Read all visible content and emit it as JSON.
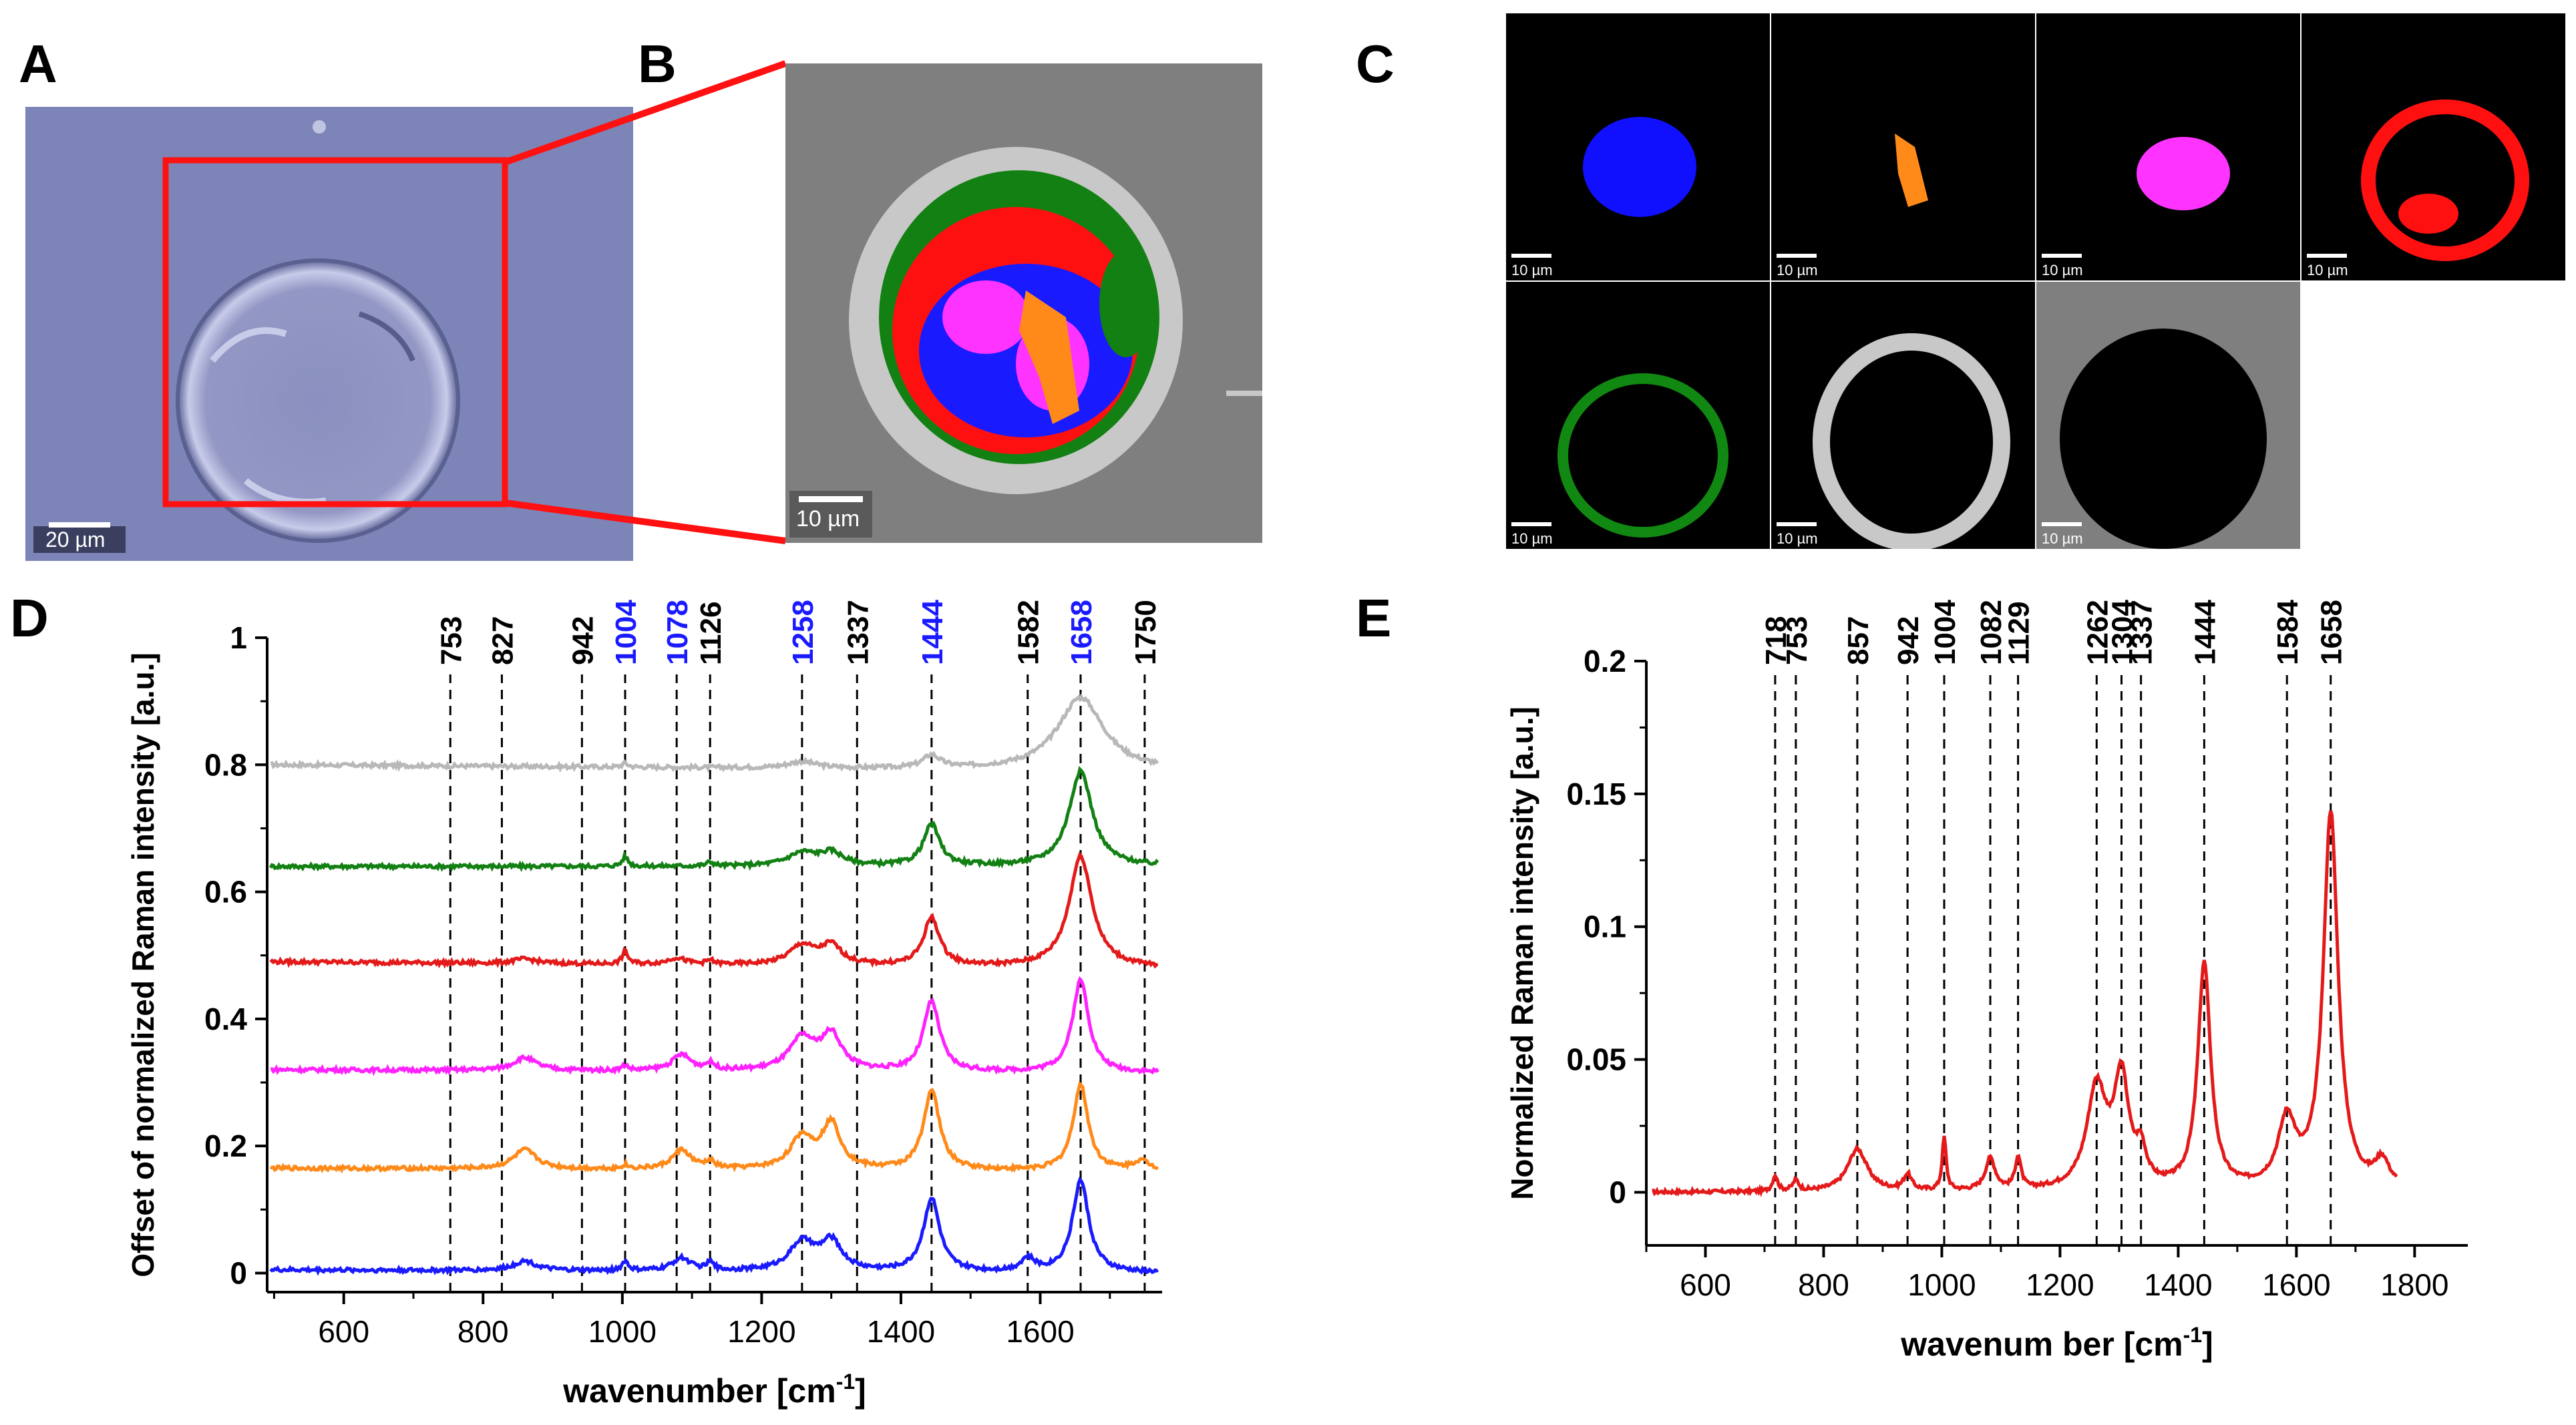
{
  "panels": {
    "a": {
      "letter": "A",
      "scale_label": "20 µm"
    },
    "b": {
      "letter": "B",
      "scale_label": "10 µm"
    },
    "c": {
      "letter": "C",
      "scale_label": "10 µm",
      "tiles": [
        {
          "name": "blue-cluster",
          "color": "#1010ff"
        },
        {
          "name": "orange-cluster",
          "color": "#ff8a1a"
        },
        {
          "name": "magenta-cluster",
          "color": "#ff33ff"
        },
        {
          "name": "red-cluster",
          "color": "#ff1010"
        },
        {
          "name": "green-cluster",
          "color": "#118811"
        },
        {
          "name": "light-gray-cluster",
          "color": "#c8c8c8"
        },
        {
          "name": "background-cluster",
          "color": "#7f7f7f"
        }
      ]
    },
    "d": {
      "letter": "D"
    },
    "e": {
      "letter": "E"
    }
  },
  "chart_data": [
    {
      "id": "D",
      "type": "line",
      "xlabel": "wavenumber [cm",
      "xlabel_sup": "-1",
      "xlabel_end": "]",
      "ylabel": "Offset of normalized Raman intensity [a.u.]",
      "xlim": [
        490,
        1775
      ],
      "ylim": [
        -0.03,
        1.0
      ],
      "xticks": [
        600,
        800,
        1000,
        1200,
        1400,
        1600
      ],
      "yticks": [
        0,
        0.2,
        0.4,
        0.6,
        0.8,
        1
      ],
      "ytick_labels": [
        "0",
        "0.2",
        "0.4",
        "0.6",
        "0.8",
        "1"
      ],
      "peak_markers": [
        {
          "x": 753,
          "label": "753",
          "color": "#000000"
        },
        {
          "x": 827,
          "label": "827",
          "color": "#000000"
        },
        {
          "x": 942,
          "label": "942",
          "color": "#000000"
        },
        {
          "x": 1004,
          "label": "1004",
          "color": "#1a1aff"
        },
        {
          "x": 1078,
          "label": "1078",
          "color": "#1a1aff"
        },
        {
          "x": 1126,
          "label": "1126",
          "color": "#000000"
        },
        {
          "x": 1258,
          "label": "1258",
          "color": "#1a1aff"
        },
        {
          "x": 1337,
          "label": "1337",
          "color": "#000000"
        },
        {
          "x": 1444,
          "label": "1444",
          "color": "#1a1aff"
        },
        {
          "x": 1582,
          "label": "1582",
          "color": "#000000"
        },
        {
          "x": 1658,
          "label": "1658",
          "color": "#1a1aff"
        },
        {
          "x": 1750,
          "label": "1750",
          "color": "#000000"
        }
      ],
      "series": [
        {
          "name": "gray",
          "color": "#b8b8b8",
          "offset": 0.8,
          "peaks": [
            [
              1004,
              0.006,
              5
            ],
            [
              1258,
              0.01,
              25
            ],
            [
              1444,
              0.02,
              15
            ],
            [
              1658,
              0.115,
              40
            ]
          ],
          "end": -0.01
        },
        {
          "name": "green",
          "color": "#128012",
          "offset": 0.64,
          "peaks": [
            [
              1004,
              0.015,
              5
            ],
            [
              1126,
              0.006,
              6
            ],
            [
              1258,
              0.02,
              25
            ],
            [
              1300,
              0.02,
              20
            ],
            [
              1444,
              0.065,
              14
            ],
            [
              1658,
              0.15,
              20
            ]
          ],
          "end": 0.0
        },
        {
          "name": "red",
          "color": "#e41a1a",
          "offset": 0.49,
          "peaks": [
            [
              860,
              0.007,
              20
            ],
            [
              1004,
              0.02,
              5
            ],
            [
              1078,
              0.01,
              15
            ],
            [
              1126,
              0.006,
              6
            ],
            [
              1258,
              0.03,
              22
            ],
            [
              1300,
              0.03,
              18
            ],
            [
              1444,
              0.075,
              14
            ],
            [
              1658,
              0.175,
              20
            ]
          ],
          "end": -0.01
        },
        {
          "name": "magenta",
          "color": "#ff22ff",
          "offset": 0.32,
          "peaks": [
            [
              860,
              0.02,
              20
            ],
            [
              1004,
              0.008,
              5
            ],
            [
              1085,
              0.025,
              16
            ],
            [
              1126,
              0.01,
              8
            ],
            [
              1258,
              0.05,
              22
            ],
            [
              1300,
              0.055,
              18
            ],
            [
              1444,
              0.11,
              14
            ],
            [
              1658,
              0.145,
              14
            ]
          ],
          "end": -0.005
        },
        {
          "name": "orange",
          "color": "#ff8a1a",
          "offset": 0.165,
          "peaks": [
            [
              860,
              0.03,
              20
            ],
            [
              1004,
              0.006,
              5
            ],
            [
              1085,
              0.03,
              16
            ],
            [
              1126,
              0.01,
              8
            ],
            [
              1258,
              0.05,
              20
            ],
            [
              1300,
              0.07,
              16
            ],
            [
              1444,
              0.125,
              14
            ],
            [
              1658,
              0.135,
              13
            ],
            [
              1745,
              0.015,
              15
            ]
          ],
          "end": -0.005
        },
        {
          "name": "blue",
          "color": "#1a1aff",
          "offset": 0.005,
          "peaks": [
            [
              860,
              0.015,
              20
            ],
            [
              1004,
              0.015,
              5
            ],
            [
              1085,
              0.02,
              16
            ],
            [
              1126,
              0.012,
              6
            ],
            [
              1258,
              0.045,
              22
            ],
            [
              1300,
              0.045,
              18
            ],
            [
              1444,
              0.115,
              14
            ],
            [
              1582,
              0.02,
              12
            ],
            [
              1658,
              0.145,
              14
            ]
          ],
          "end": -0.005
        }
      ]
    },
    {
      "id": "E",
      "type": "line",
      "xlabel": "wavenum ber [cm",
      "xlabel_sup": "-1",
      "xlabel_end": "]",
      "ylabel": "Normalized Raman intensity [a.u.]",
      "xlim": [
        500,
        1890
      ],
      "ylim": [
        -0.02,
        0.2
      ],
      "xticks": [
        600,
        800,
        1000,
        1200,
        1400,
        1600,
        1800
      ],
      "yticks": [
        0,
        0.05,
        0.1,
        0.15,
        0.2
      ],
      "ytick_labels": [
        "0",
        "0.05",
        "0.1",
        "0.15",
        "0.2"
      ],
      "peak_markers": [
        {
          "x": 718,
          "label": "718"
        },
        {
          "x": 753,
          "label": "753"
        },
        {
          "x": 857,
          "label": "857"
        },
        {
          "x": 942,
          "label": "942"
        },
        {
          "x": 1004,
          "label": "1004"
        },
        {
          "x": 1082,
          "label": "1082"
        },
        {
          "x": 1129,
          "label": "1129"
        },
        {
          "x": 1262,
          "label": "1262"
        },
        {
          "x": 1304,
          "label": "1304"
        },
        {
          "x": 1337,
          "label": "1337"
        },
        {
          "x": 1444,
          "label": "1444"
        },
        {
          "x": 1584,
          "label": "1584"
        },
        {
          "x": 1658,
          "label": "1658"
        }
      ],
      "series": [
        {
          "name": "red",
          "color": "#e41a1a",
          "offset": 0.0,
          "x_range": [
            510,
            1770
          ],
          "peaks": [
            [
              718,
              0.006,
              5
            ],
            [
              753,
              0.004,
              6
            ],
            [
              857,
              0.016,
              20
            ],
            [
              942,
              0.006,
              8
            ],
            [
              1004,
              0.02,
              4
            ],
            [
              1082,
              0.012,
              10
            ],
            [
              1129,
              0.012,
              6
            ],
            [
              1262,
              0.038,
              20
            ],
            [
              1304,
              0.04,
              15
            ],
            [
              1337,
              0.012,
              10
            ],
            [
              1444,
              0.085,
              13
            ],
            [
              1584,
              0.025,
              18
            ],
            [
              1658,
              0.142,
              15
            ],
            [
              1745,
              0.01,
              15
            ]
          ],
          "end": 0.0
        }
      ]
    }
  ]
}
